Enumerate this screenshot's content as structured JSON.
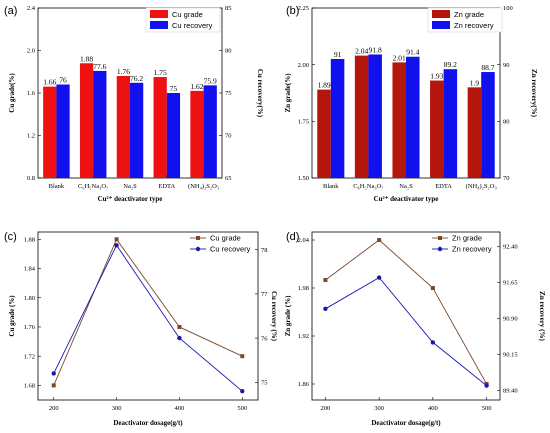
{
  "chart_data": [
    {
      "panel": "(a)",
      "type": "bar",
      "categories": [
        "Blank",
        "C₆H₅Na₃O₇",
        "Na₂S",
        "EDTA",
        "(NH₄)₂S₂O₃"
      ],
      "xlabel": "Cu²⁺ deactivator type",
      "ylabel": "Cu grade(%)",
      "y2label": "Cu recovery(%)",
      "ylim": [
        0.8,
        2.4
      ],
      "y2lim": [
        65,
        85
      ],
      "yticks": [
        0.8,
        1.2,
        1.6,
        2.0,
        2.4
      ],
      "y2ticks": [
        65,
        70,
        75,
        80,
        85
      ],
      "legend_position": "top-right",
      "series": [
        {
          "name": "Cu grade",
          "axis": "left",
          "color": "#ee1111",
          "values": [
            1.66,
            1.88,
            1.76,
            1.75,
            1.62
          ],
          "labels": [
            "1.66",
            "1.88",
            "1.76",
            "1.75",
            "1.62"
          ]
        },
        {
          "name": "Cu recovery",
          "axis": "right",
          "color": "#1111ee",
          "values": [
            76,
            77.6,
            76.2,
            75,
            75.9
          ],
          "labels": [
            "76",
            "77.6",
            "76.2",
            "75",
            "75.9"
          ]
        }
      ]
    },
    {
      "panel": "(b)",
      "type": "bar",
      "categories": [
        "Blank",
        "C₆H₅Na₃O₇",
        "Na₂S",
        "EDTA",
        "(NH₄)₂S₂O₃"
      ],
      "xlabel": "Cu²⁺ deactivator type",
      "ylabel": "Zn grade(%)",
      "y2label": "Zn recovery(%)",
      "ylim": [
        1.5,
        2.25
      ],
      "y2lim": [
        70,
        100
      ],
      "yticks": [
        1.5,
        1.75,
        2.0,
        2.25
      ],
      "y2ticks": [
        70,
        80,
        90,
        100
      ],
      "legend_position": "top-right",
      "series": [
        {
          "name": "Zn grade",
          "axis": "left",
          "color": "#b5160c",
          "values": [
            1.89,
            2.04,
            2.01,
            1.93,
            1.9
          ],
          "labels": [
            "1.89",
            "2.04",
            "2.01",
            "1.93",
            "1.9"
          ]
        },
        {
          "name": "Zn recovery",
          "axis": "right",
          "color": "#1111ee",
          "values": [
            91,
            91.8,
            91.4,
            89.2,
            88.7
          ],
          "labels": [
            "91",
            "91.8",
            "91.4",
            "89.2",
            "88.7"
          ]
        }
      ]
    },
    {
      "panel": "(c)",
      "type": "line",
      "x": [
        200,
        300,
        400,
        500
      ],
      "xlabel": "Deactivator dosage(g/t)",
      "ylabel": "Cu grade (%)",
      "y2label": "Cu recovery (%)",
      "xlim": [
        175,
        525
      ],
      "ylim": [
        1.66,
        1.89
      ],
      "y2lim": [
        74.6,
        78.4
      ],
      "xticks": [
        200,
        300,
        400,
        500
      ],
      "yticks": [
        1.68,
        1.72,
        1.76,
        1.8,
        1.84,
        1.88
      ],
      "y2ticks": [
        75,
        76,
        77,
        78
      ],
      "legend_position": "top-right",
      "series": [
        {
          "name": "Cu grade",
          "axis": "left",
          "color": "#7a4a2a",
          "marker": "square",
          "values": [
            1.68,
            1.88,
            1.76,
            1.72
          ]
        },
        {
          "name": "Cu recovery",
          "axis": "right",
          "color": "#1a1ab0",
          "marker": "circle",
          "values": [
            75.2,
            78.1,
            76,
            74.8
          ]
        }
      ]
    },
    {
      "panel": "(d)",
      "type": "line",
      "x": [
        200,
        300,
        400,
        500
      ],
      "xlabel": "Deactivator dosage(g/t)",
      "ylabel": "Zn grade (%)",
      "y2label": "Zn recovery (%)",
      "xlim": [
        175,
        525
      ],
      "ylim": [
        1.84,
        2.05
      ],
      "y2lim": [
        89.2,
        92.7
      ],
      "xticks": [
        200,
        300,
        400,
        500
      ],
      "yticks": [
        1.86,
        1.92,
        1.98,
        2.04
      ],
      "y2ticks": [
        89.4,
        90.15,
        90.9,
        91.65,
        92.4
      ],
      "y2ticklabels": [
        "89.40",
        "90.15",
        "90.90",
        "91.65",
        "92.40"
      ],
      "legend_position": "top-right",
      "series": [
        {
          "name": "Zn grade",
          "axis": "left",
          "color": "#7a4a2a",
          "marker": "square",
          "values": [
            1.99,
            2.04,
            1.98,
            1.86
          ]
        },
        {
          "name": "Zn recovery",
          "axis": "right",
          "color": "#1a1ab0",
          "marker": "circle",
          "values": [
            91.1,
            91.75,
            90.4,
            89.5
          ]
        }
      ]
    }
  ]
}
